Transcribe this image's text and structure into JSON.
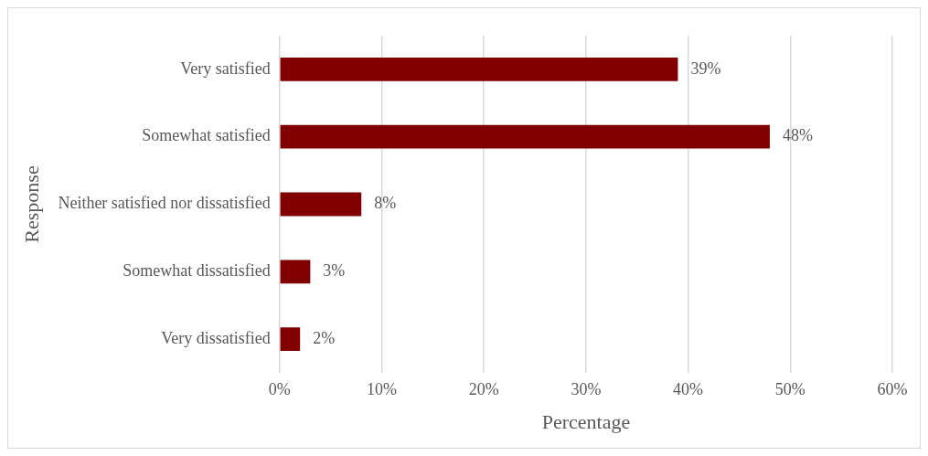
{
  "chart_data": {
    "type": "bar",
    "orientation": "horizontal",
    "xlabel": "Percentage",
    "ylabel": "Response",
    "categories": [
      "Very satisfied",
      "Somewhat satisfied",
      "Neither satisfied nor dissatisfied",
      "Somewhat dissatisfied",
      "Very dissatisfied"
    ],
    "values": [
      39,
      48,
      8,
      3,
      2
    ],
    "value_labels": [
      "39%",
      "48%",
      "8%",
      "3%",
      "2%"
    ],
    "color": "#800000",
    "xlim": [
      0,
      60
    ],
    "xticks": [
      {
        "value": 0,
        "label": "0%"
      },
      {
        "value": 10,
        "label": "10%"
      },
      {
        "value": 20,
        "label": "20%"
      },
      {
        "value": 30,
        "label": "30%"
      },
      {
        "value": 40,
        "label": "40%"
      },
      {
        "value": 50,
        "label": "50%"
      },
      {
        "value": 60,
        "label": "60%"
      }
    ],
    "grid": "x",
    "legend": false
  }
}
